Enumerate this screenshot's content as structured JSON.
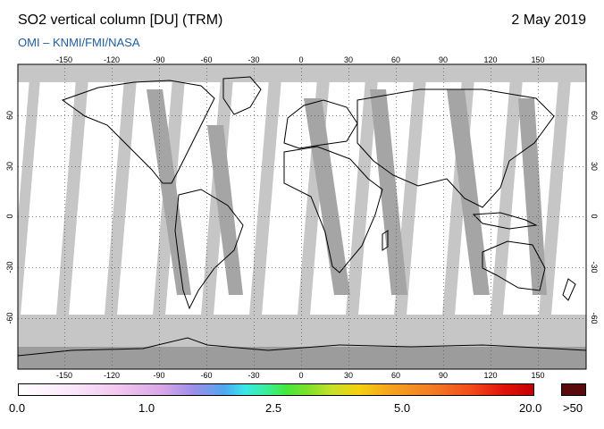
{
  "header": {
    "title": "SO2 vertical column [DU] (TRM)",
    "date": "2 May 2019",
    "credit": "OMI  –  KNMI/FMI/NASA"
  },
  "map": {
    "lon_ticks": [
      "-150",
      "-120",
      "-90",
      "-60",
      "-30",
      "0",
      "30",
      "60",
      "90",
      "120",
      "150"
    ],
    "lat_ticks_left": [
      "60",
      "30",
      "0",
      "-30",
      "-60"
    ],
    "lat_ticks_right": [
      "60",
      "30",
      "0",
      "-30",
      "-60"
    ],
    "colors": {
      "background": "#ffffff",
      "swath_gap": "#c6c6c6",
      "dark_swath": "#a5a5a5",
      "polar": "#9c9c9c",
      "coast": "#000000",
      "grid": "#555555"
    }
  },
  "colorbar": {
    "labels": [
      "0.0",
      "1.0",
      "2.5",
      "5.0",
      "20.0",
      ">50"
    ],
    "over_color": "#5a0a0a"
  }
}
